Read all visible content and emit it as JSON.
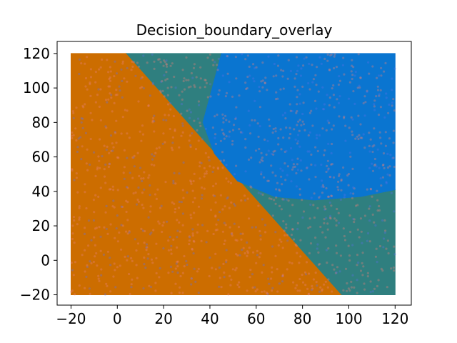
{
  "chart_data": {
    "type": "scatter",
    "title": "Decision_boundary_overlay",
    "xlabel": "",
    "ylabel": "",
    "xlim": [
      -26,
      127
    ],
    "ylim": [
      -26,
      127
    ],
    "xticks": [
      -20,
      0,
      20,
      40,
      60,
      80,
      100,
      120
    ],
    "yticks": [
      -20,
      0,
      20,
      40,
      60,
      80,
      100,
      120
    ],
    "xtick_labels": [
      "−20",
      "0",
      "20",
      "40",
      "60",
      "80",
      "100",
      "120"
    ],
    "ytick_labels": [
      "−20",
      "0",
      "20",
      "40",
      "60",
      "80",
      "100",
      "120"
    ],
    "grid": false,
    "legend": "none",
    "data_extent": {
      "x": [
        -20,
        120
      ],
      "y": [
        -20,
        120
      ]
    },
    "regions": [
      {
        "class": "orange",
        "color": "#cc6d00",
        "description": "left of the diagonal line",
        "boundary": [
          [
            -20,
            120
          ],
          [
            4,
            120
          ],
          [
            97,
            -20
          ],
          [
            -20,
            -20
          ]
        ]
      },
      {
        "class": "teal",
        "color": "#2f7f7f",
        "description": "between diagonal line and blue region",
        "boundary": [
          [
            4,
            120
          ],
          [
            45,
            120
          ],
          [
            40,
            95
          ],
          [
            37,
            80
          ],
          [
            42,
            62
          ],
          [
            52,
            46
          ],
          [
            68,
            37
          ],
          [
            85,
            35
          ],
          [
            105,
            37
          ],
          [
            120,
            41
          ],
          [
            120,
            -20
          ],
          [
            97,
            -20
          ]
        ]
      },
      {
        "class": "blue",
        "color": "#0a75d0",
        "description": "upper-right region",
        "boundary": [
          [
            45,
            120
          ],
          [
            120,
            120
          ],
          [
            120,
            41
          ],
          [
            105,
            37
          ],
          [
            85,
            35
          ],
          [
            68,
            37
          ],
          [
            52,
            46
          ],
          [
            42,
            62
          ],
          [
            37,
            80
          ],
          [
            40,
            95
          ]
        ]
      }
    ],
    "colors": {
      "orange": "#cc6d00",
      "teal": "#2f7f7f",
      "blue": "#0a75d0",
      "noise": "#e8807a",
      "noise_blue": "#5b6fe8"
    }
  }
}
